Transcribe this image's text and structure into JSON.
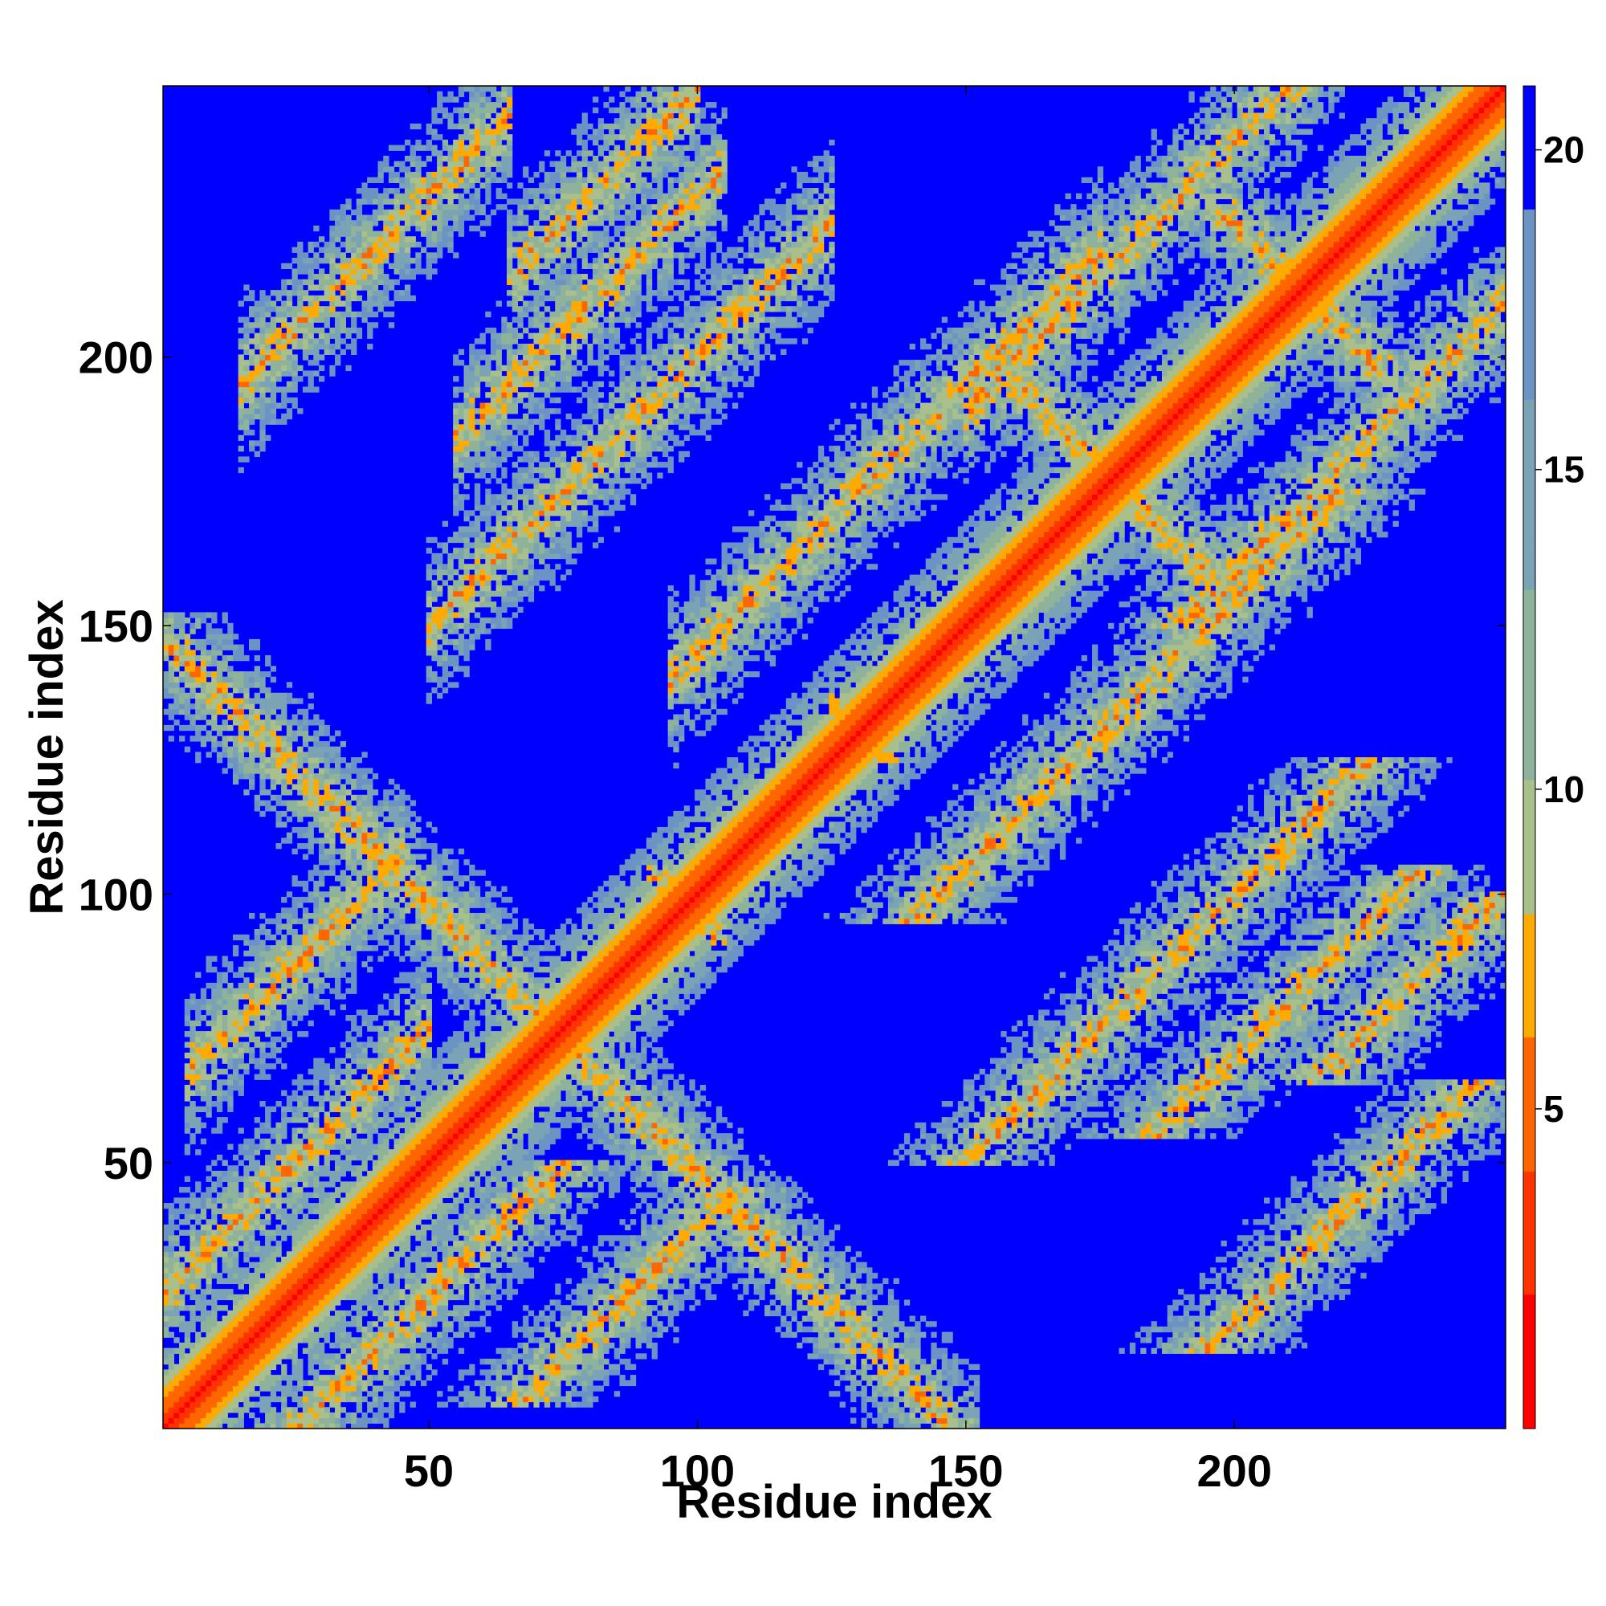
{
  "chart_data": {
    "type": "heatmap",
    "title": "",
    "xlabel": "Residue index",
    "ylabel": "Residue index",
    "n_residues": 250,
    "xlim": [
      1,
      250
    ],
    "ylim": [
      1,
      250
    ],
    "x_ticks": [
      50,
      100,
      150,
      200
    ],
    "x_tick_labels": [
      "50",
      "100",
      "150",
      "200"
    ],
    "y_ticks": [
      50,
      100,
      150,
      200
    ],
    "y_tick_labels": [
      "50",
      "100",
      "150",
      "200"
    ],
    "colorbar": {
      "min": 0,
      "max": 21,
      "ticks": [
        5,
        10,
        15,
        20
      ],
      "tick_labels": [
        "5",
        "10",
        "15",
        "20"
      ],
      "colors": [
        "#ff0000",
        "#ff6a00",
        "#ffaa00",
        "#9fbf8f",
        "#6e9fbf",
        "#0000ff"
      ]
    },
    "color_steps": [
      {
        "max": 2,
        "color": "#ff0000"
      },
      {
        "max": 4,
        "color": "#ff3300"
      },
      {
        "max": 6,
        "color": "#ff6600"
      },
      {
        "max": 8,
        "color": "#ffaa00"
      },
      {
        "max": 10,
        "color": "#a9c08c"
      },
      {
        "max": 13,
        "color": "#8fb39a"
      },
      {
        "max": 16,
        "color": "#7aa3b5"
      },
      {
        "max": 19,
        "color": "#6b93c3"
      },
      {
        "max": 999,
        "color": "#0000ff"
      }
    ],
    "contact_bands": [
      {
        "type": "anti",
        "sum": 148,
        "from": 1,
        "to": 75
      },
      {
        "type": "anti",
        "sum": 196,
        "from": 96,
        "to": 100
      },
      {
        "type": "anti",
        "sum": 262,
        "from": 130,
        "to": 132
      },
      {
        "type": "anti",
        "sum": 355,
        "from": 160,
        "to": 195
      },
      {
        "type": "anti",
        "sum": 425,
        "from": 200,
        "to": 225
      },
      {
        "type": "parallel",
        "diff": 25,
        "from": 1,
        "to": 45
      },
      {
        "type": "parallel",
        "diff": 62,
        "from": 10,
        "to": 40
      },
      {
        "type": "parallel",
        "diff": 100,
        "from": 55,
        "to": 120
      },
      {
        "type": "parallel",
        "diff": 45,
        "from": 100,
        "to": 170
      },
      {
        "type": "parallel",
        "diff": 130,
        "from": 60,
        "to": 100
      },
      {
        "type": "parallel",
        "diff": 150,
        "from": 70,
        "to": 95
      },
      {
        "type": "parallel",
        "diff": 40,
        "from": 155,
        "to": 215
      },
      {
        "type": "parallel",
        "diff": 180,
        "from": 20,
        "to": 60
      }
    ]
  }
}
